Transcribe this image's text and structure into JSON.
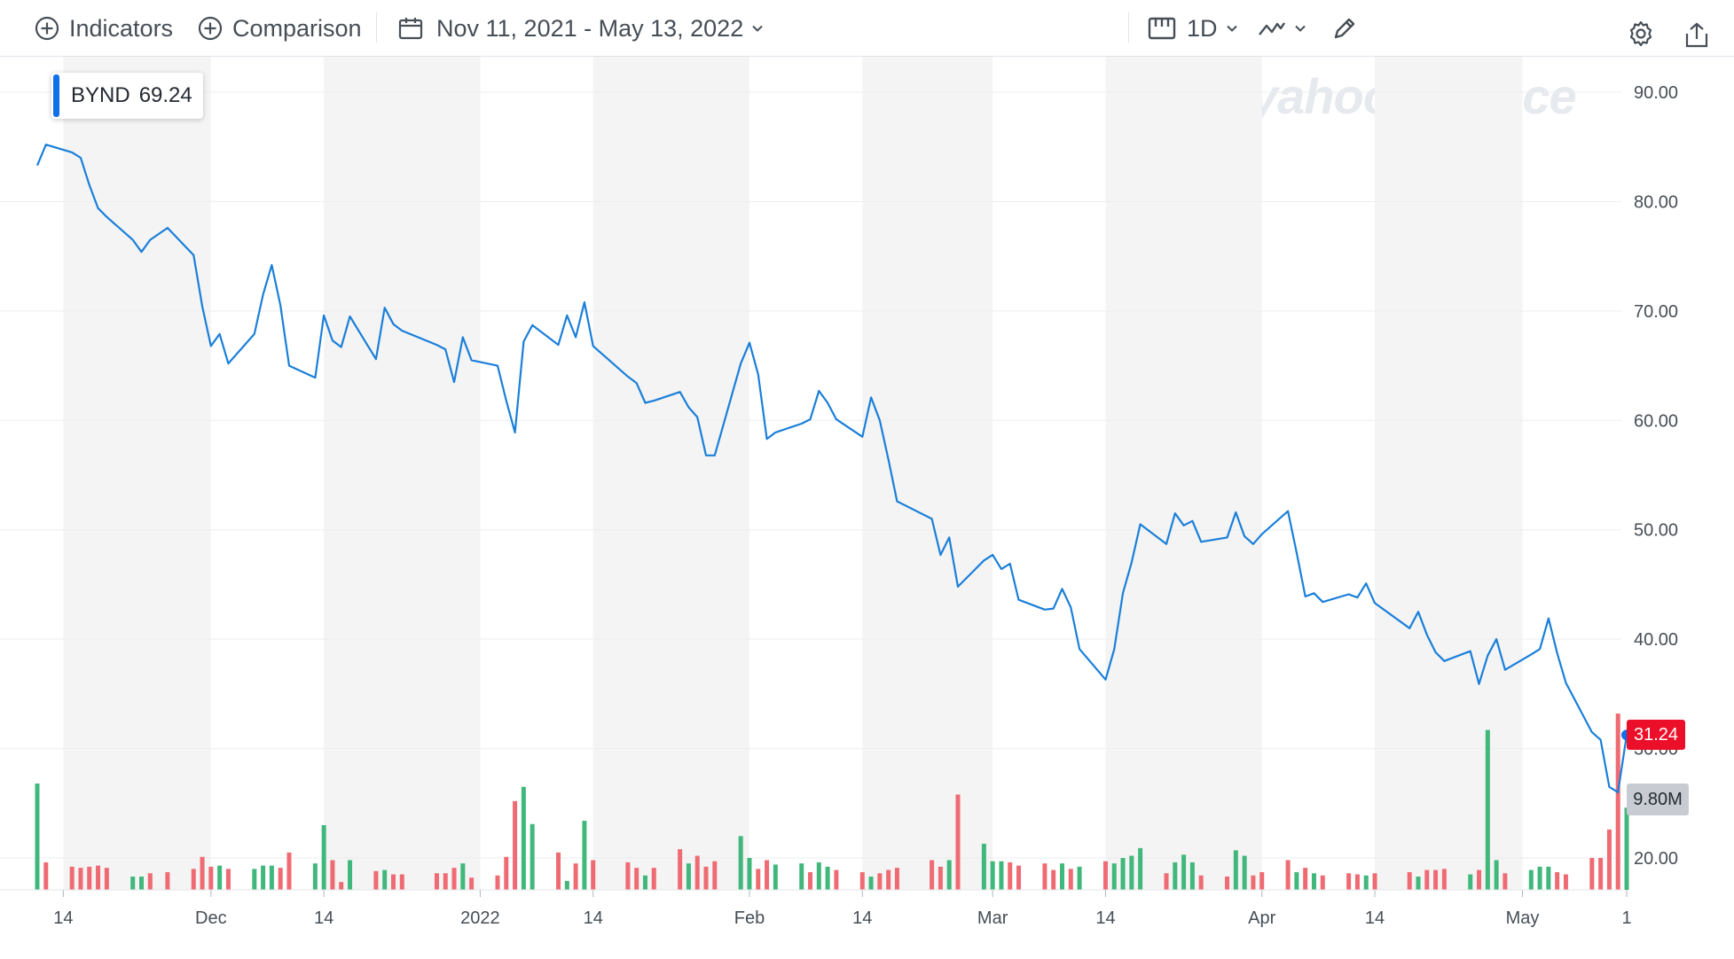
{
  "toolbar": {
    "indicators_label": "Indicators",
    "comparison_label": "Comparison",
    "date_range": "Nov 11, 2021 - May 13, 2022",
    "interval_label": "1D"
  },
  "tooltip": {
    "symbol": "BYND",
    "value": "69.24"
  },
  "watermark": "yahoo!finance",
  "badges": {
    "last_price": "31.24",
    "last_volume": "9.80M"
  },
  "colors": {
    "line": "#1a7fd9",
    "up": "#40b87c",
    "down": "#ef6b73",
    "band": "#f4f4f4",
    "grid": "#ebedf0"
  },
  "chart_data": {
    "type": "line",
    "title": "",
    "xlabel": "",
    "ylabel": "",
    "ylim": [
      17,
      93
    ],
    "yticks": [
      90,
      80,
      70,
      60,
      50,
      40,
      30,
      20
    ],
    "ytick_labels": [
      "90.00",
      "80.00",
      "70.00",
      "60.00",
      "50.00",
      "40.00",
      "30.00",
      "20.00"
    ],
    "xticks": [
      {
        "label": "14",
        "date": "2021-11-14"
      },
      {
        "label": "Dec",
        "date": "2021-12-01"
      },
      {
        "label": "14",
        "date": "2021-12-14"
      },
      {
        "label": "2022",
        "date": "2022-01-01"
      },
      {
        "label": "14",
        "date": "2022-01-14"
      },
      {
        "label": "Feb",
        "date": "2022-02-01"
      },
      {
        "label": "14",
        "date": "2022-02-14"
      },
      {
        "label": "Mar",
        "date": "2022-03-01"
      },
      {
        "label": "14",
        "date": "2022-03-14"
      },
      {
        "label": "Apr",
        "date": "2022-04-01"
      },
      {
        "label": "14",
        "date": "2022-04-14"
      },
      {
        "label": "May",
        "date": "2022-05-01"
      },
      {
        "label": "1",
        "date": "2022-05-13"
      }
    ],
    "bands": [
      [
        "2021-11-14",
        "2021-12-01"
      ],
      [
        "2021-12-14",
        "2022-01-01"
      ],
      [
        "2022-01-14",
        "2022-02-01"
      ],
      [
        "2022-02-14",
        "2022-03-01"
      ],
      [
        "2022-03-14",
        "2022-04-01"
      ],
      [
        "2022-04-14",
        "2022-05-01"
      ]
    ],
    "price": [
      [
        "2021-11-11",
        83.3
      ],
      [
        "2021-11-12",
        85.2
      ],
      [
        "2021-11-15",
        84.5
      ],
      [
        "2021-11-16",
        84.0
      ],
      [
        "2021-11-17",
        81.5
      ],
      [
        "2021-11-18",
        79.4
      ],
      [
        "2021-11-19",
        78.6
      ],
      [
        "2021-11-22",
        76.5
      ],
      [
        "2021-11-23",
        75.4
      ],
      [
        "2021-11-24",
        76.5
      ],
      [
        "2021-11-26",
        77.6
      ],
      [
        "2021-11-29",
        75.1
      ],
      [
        "2021-11-30",
        70.4
      ],
      [
        "2021-12-01",
        66.8
      ],
      [
        "2021-12-02",
        67.9
      ],
      [
        "2021-12-03",
        65.2
      ],
      [
        "2021-12-06",
        67.9
      ],
      [
        "2021-12-07",
        71.5
      ],
      [
        "2021-12-08",
        74.2
      ],
      [
        "2021-12-09",
        70.5
      ],
      [
        "2021-12-10",
        65.0
      ],
      [
        "2021-12-13",
        63.9
      ],
      [
        "2021-12-14",
        69.6
      ],
      [
        "2021-12-15",
        67.3
      ],
      [
        "2021-12-16",
        66.7
      ],
      [
        "2021-12-17",
        69.5
      ],
      [
        "2021-12-20",
        65.6
      ],
      [
        "2021-12-21",
        70.3
      ],
      [
        "2021-12-22",
        68.8
      ],
      [
        "2021-12-23",
        68.2
      ],
      [
        "2021-12-27",
        66.9
      ],
      [
        "2021-12-28",
        66.5
      ],
      [
        "2021-12-29",
        63.5
      ],
      [
        "2021-12-30",
        67.6
      ],
      [
        "2021-12-31",
        65.5
      ],
      [
        "2022-01-03",
        65.0
      ],
      [
        "2022-01-04",
        61.8
      ],
      [
        "2022-01-05",
        58.9
      ],
      [
        "2022-01-06",
        67.2
      ],
      [
        "2022-01-07",
        68.7
      ],
      [
        "2022-01-10",
        66.9
      ],
      [
        "2022-01-11",
        69.6
      ],
      [
        "2022-01-12",
        67.6
      ],
      [
        "2022-01-13",
        70.8
      ],
      [
        "2022-01-14",
        66.8
      ],
      [
        "2022-01-18",
        64.0
      ],
      [
        "2022-01-19",
        63.4
      ],
      [
        "2022-01-20",
        61.6
      ],
      [
        "2022-01-21",
        61.8
      ],
      [
        "2022-01-24",
        62.6
      ],
      [
        "2022-01-25",
        61.2
      ],
      [
        "2022-01-26",
        60.3
      ],
      [
        "2022-01-27",
        56.8
      ],
      [
        "2022-01-28",
        56.8
      ],
      [
        "2022-01-31",
        65.2
      ],
      [
        "2022-02-01",
        67.1
      ],
      [
        "2022-02-02",
        64.2
      ],
      [
        "2022-02-03",
        58.3
      ],
      [
        "2022-02-04",
        58.9
      ],
      [
        "2022-02-07",
        59.7
      ],
      [
        "2022-02-08",
        60.1
      ],
      [
        "2022-02-09",
        62.7
      ],
      [
        "2022-02-10",
        61.6
      ],
      [
        "2022-02-11",
        60.1
      ],
      [
        "2022-02-14",
        58.5
      ],
      [
        "2022-02-15",
        62.1
      ],
      [
        "2022-02-16",
        60.0
      ],
      [
        "2022-02-17",
        56.4
      ],
      [
        "2022-02-18",
        52.6
      ],
      [
        "2022-02-22",
        51.0
      ],
      [
        "2022-02-23",
        47.7
      ],
      [
        "2022-02-24",
        49.3
      ],
      [
        "2022-02-25",
        44.8
      ],
      [
        "2022-02-28",
        47.2
      ],
      [
        "2022-03-01",
        47.7
      ],
      [
        "2022-03-02",
        46.4
      ],
      [
        "2022-03-03",
        46.9
      ],
      [
        "2022-03-04",
        43.6
      ],
      [
        "2022-03-07",
        42.7
      ],
      [
        "2022-03-08",
        42.8
      ],
      [
        "2022-03-09",
        44.6
      ],
      [
        "2022-03-10",
        42.9
      ],
      [
        "2022-03-11",
        39.1
      ],
      [
        "2022-03-14",
        36.3
      ],
      [
        "2022-03-15",
        39.1
      ],
      [
        "2022-03-16",
        44.2
      ],
      [
        "2022-03-17",
        47.0
      ],
      [
        "2022-03-18",
        50.5
      ],
      [
        "2022-03-21",
        48.7
      ],
      [
        "2022-03-22",
        51.5
      ],
      [
        "2022-03-23",
        50.4
      ],
      [
        "2022-03-24",
        50.8
      ],
      [
        "2022-03-25",
        48.9
      ],
      [
        "2022-03-28",
        49.3
      ],
      [
        "2022-03-29",
        51.6
      ],
      [
        "2022-03-30",
        49.4
      ],
      [
        "2022-03-31",
        48.7
      ],
      [
        "2022-04-01",
        49.6
      ],
      [
        "2022-04-04",
        51.7
      ],
      [
        "2022-04-05",
        47.9
      ],
      [
        "2022-04-06",
        43.9
      ],
      [
        "2022-04-07",
        44.2
      ],
      [
        "2022-04-08",
        43.4
      ],
      [
        "2022-04-11",
        44.1
      ],
      [
        "2022-04-12",
        43.8
      ],
      [
        "2022-04-13",
        45.1
      ],
      [
        "2022-04-14",
        43.3
      ],
      [
        "2022-04-18",
        41.0
      ],
      [
        "2022-04-19",
        42.5
      ],
      [
        "2022-04-20",
        40.4
      ],
      [
        "2022-04-21",
        38.8
      ],
      [
        "2022-04-22",
        38.0
      ],
      [
        "2022-04-25",
        38.9
      ],
      [
        "2022-04-26",
        35.9
      ],
      [
        "2022-04-27",
        38.5
      ],
      [
        "2022-04-28",
        40.0
      ],
      [
        "2022-04-29",
        37.2
      ],
      [
        "2022-05-02",
        38.6
      ],
      [
        "2022-05-03",
        39.1
      ],
      [
        "2022-05-04",
        41.9
      ],
      [
        "2022-05-05",
        38.7
      ],
      [
        "2022-05-06",
        36.0
      ],
      [
        "2022-05-09",
        31.5
      ],
      [
        "2022-05-10",
        30.8
      ],
      [
        "2022-05-11",
        26.5
      ],
      [
        "2022-05-12",
        26.0
      ],
      [
        "2022-05-13",
        31.24
      ]
    ],
    "volume_series": [
      {
        "name": "up",
        "values": [
          [
            "2021-11-11",
            26.8
          ],
          [
            "2021-11-22",
            18.3
          ],
          [
            "2021-11-23",
            18.3
          ],
          [
            "2021-12-02",
            19.3
          ],
          [
            "2021-12-06",
            19.0
          ],
          [
            "2021-12-07",
            19.3
          ],
          [
            "2021-12-08",
            19.3
          ],
          [
            "2021-12-13",
            19.5
          ],
          [
            "2021-12-14",
            23.0
          ],
          [
            "2021-12-17",
            19.8
          ],
          [
            "2021-12-21",
            18.9
          ],
          [
            "2021-12-30",
            19.5
          ],
          [
            "2022-01-06",
            26.5
          ],
          [
            "2022-01-07",
            23.1
          ],
          [
            "2022-01-11",
            17.9
          ],
          [
            "2022-01-13",
            23.4
          ],
          [
            "2022-01-20",
            18.4
          ],
          [
            "2022-01-25",
            19.5
          ],
          [
            "2022-01-31",
            22.0
          ],
          [
            "2022-02-01",
            20.0
          ],
          [
            "2022-02-04",
            19.4
          ],
          [
            "2022-02-07",
            19.5
          ],
          [
            "2022-02-09",
            19.6
          ],
          [
            "2022-02-10",
            19.2
          ],
          [
            "2022-02-15",
            18.3
          ],
          [
            "2022-02-24",
            19.8
          ],
          [
            "2022-02-28",
            21.3
          ],
          [
            "2022-03-01",
            19.7
          ],
          [
            "2022-03-02",
            19.7
          ],
          [
            "2022-03-09",
            19.5
          ],
          [
            "2022-03-11",
            19.2
          ],
          [
            "2022-03-15",
            19.5
          ],
          [
            "2022-03-16",
            20.0
          ],
          [
            "2022-03-17",
            20.2
          ],
          [
            "2022-03-18",
            20.9
          ],
          [
            "2022-03-22",
            19.6
          ],
          [
            "2022-03-23",
            20.3
          ],
          [
            "2022-03-24",
            19.6
          ],
          [
            "2022-03-29",
            20.7
          ],
          [
            "2022-03-30",
            20.2
          ],
          [
            "2022-04-05",
            18.7
          ],
          [
            "2022-04-07",
            18.6
          ],
          [
            "2022-04-13",
            18.4
          ],
          [
            "2022-04-19",
            18.3
          ],
          [
            "2022-04-25",
            18.5
          ],
          [
            "2022-04-27",
            31.7
          ],
          [
            "2022-04-28",
            19.8
          ],
          [
            "2022-05-02",
            18.9
          ],
          [
            "2022-05-03",
            19.2
          ],
          [
            "2022-05-04",
            19.2
          ],
          [
            "2022-05-13",
            24.6
          ]
        ]
      },
      {
        "name": "down",
        "values": [
          [
            "2021-11-12",
            19.6
          ],
          [
            "2021-11-15",
            19.2
          ],
          [
            "2021-11-16",
            19.1
          ],
          [
            "2021-11-17",
            19.2
          ],
          [
            "2021-11-18",
            19.3
          ],
          [
            "2021-11-19",
            19.1
          ],
          [
            "2021-11-24",
            18.6
          ],
          [
            "2021-11-26",
            18.7
          ],
          [
            "2021-11-29",
            19.0
          ],
          [
            "2021-11-30",
            20.1
          ],
          [
            "2021-12-01",
            19.2
          ],
          [
            "2021-12-03",
            19.0
          ],
          [
            "2021-12-09",
            19.1
          ],
          [
            "2021-12-10",
            20.5
          ],
          [
            "2021-12-15",
            19.8
          ],
          [
            "2021-12-16",
            17.8
          ],
          [
            "2021-12-20",
            18.8
          ],
          [
            "2021-12-22",
            18.5
          ],
          [
            "2021-12-23",
            18.5
          ],
          [
            "2021-12-27",
            18.6
          ],
          [
            "2021-12-28",
            18.6
          ],
          [
            "2021-12-29",
            19.1
          ],
          [
            "2021-12-31",
            18.2
          ],
          [
            "2022-01-03",
            18.4
          ],
          [
            "2022-01-04",
            20.1
          ],
          [
            "2022-01-05",
            25.2
          ],
          [
            "2022-01-10",
            20.5
          ],
          [
            "2022-01-12",
            19.5
          ],
          [
            "2022-01-14",
            19.8
          ],
          [
            "2022-01-18",
            19.6
          ],
          [
            "2022-01-19",
            19.1
          ],
          [
            "2022-01-21",
            19.1
          ],
          [
            "2022-01-24",
            20.8
          ],
          [
            "2022-01-26",
            20.2
          ],
          [
            "2022-01-27",
            19.2
          ],
          [
            "2022-01-28",
            19.7
          ],
          [
            "2022-02-02",
            19.0
          ],
          [
            "2022-02-03",
            19.8
          ],
          [
            "2022-02-08",
            18.7
          ],
          [
            "2022-02-11",
            18.9
          ],
          [
            "2022-02-14",
            18.7
          ],
          [
            "2022-02-16",
            18.6
          ],
          [
            "2022-02-17",
            18.9
          ],
          [
            "2022-02-18",
            19.1
          ],
          [
            "2022-02-22",
            19.8
          ],
          [
            "2022-02-23",
            19.2
          ],
          [
            "2022-02-25",
            25.8
          ],
          [
            "2022-03-03",
            19.6
          ],
          [
            "2022-03-04",
            19.3
          ],
          [
            "2022-03-07",
            19.5
          ],
          [
            "2022-03-08",
            18.9
          ],
          [
            "2022-03-10",
            19.0
          ],
          [
            "2022-03-14",
            19.7
          ],
          [
            "2022-03-21",
            18.6
          ],
          [
            "2022-03-25",
            18.4
          ],
          [
            "2022-03-28",
            18.3
          ],
          [
            "2022-03-31",
            18.4
          ],
          [
            "2022-04-01",
            18.7
          ],
          [
            "2022-04-04",
            19.8
          ],
          [
            "2022-04-06",
            19.1
          ],
          [
            "2022-04-08",
            18.4
          ],
          [
            "2022-04-11",
            18.6
          ],
          [
            "2022-04-12",
            18.5
          ],
          [
            "2022-04-14",
            18.6
          ],
          [
            "2022-04-18",
            18.7
          ],
          [
            "2022-04-20",
            18.9
          ],
          [
            "2022-04-21",
            18.9
          ],
          [
            "2022-04-22",
            19.0
          ],
          [
            "2022-04-26",
            18.9
          ],
          [
            "2022-04-29",
            18.6
          ],
          [
            "2022-05-05",
            18.7
          ],
          [
            "2022-05-06",
            18.5
          ],
          [
            "2022-05-09",
            20.0
          ],
          [
            "2022-05-10",
            20.0
          ],
          [
            "2022-05-11",
            22.6
          ],
          [
            "2022-05-12",
            33.2
          ]
        ]
      }
    ]
  }
}
